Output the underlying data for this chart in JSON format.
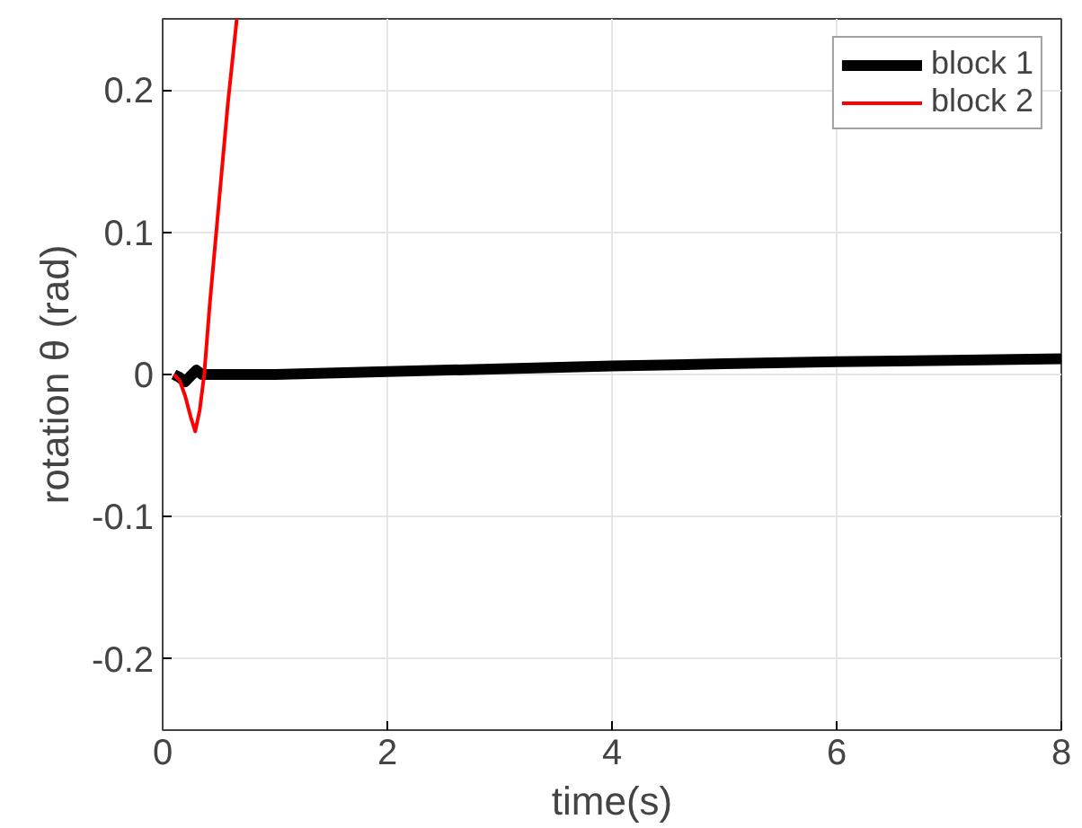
{
  "chart_data": {
    "type": "line",
    "xlabel": "time(s)",
    "ylabel": "rotation θ (rad)",
    "xlim": [
      0,
      8
    ],
    "xticks": [
      0,
      2,
      4,
      6,
      8
    ],
    "ylim": [
      -0.25,
      0.25
    ],
    "yticks": [
      -0.2,
      -0.1,
      0,
      0.1,
      0.2
    ],
    "grid": true,
    "legend": "top right",
    "series": [
      {
        "name": "block 1",
        "color": "#000000",
        "x": [
          0.1,
          0.15,
          0.2,
          0.25,
          0.3,
          0.35,
          0.5,
          1,
          2,
          3,
          4,
          5,
          6,
          7,
          8
        ],
        "values": [
          0,
          -0.002,
          -0.005,
          -0.001,
          0.003,
          0,
          0,
          0,
          0.002,
          0.004,
          0.006,
          0.0075,
          0.009,
          0.01,
          0.011
        ]
      },
      {
        "name": "block 2",
        "color": "#ff0000",
        "x": [
          0.1,
          0.15,
          0.2,
          0.25,
          0.29,
          0.33,
          0.37,
          0.42,
          0.5,
          0.58,
          0.66
        ],
        "values": [
          0,
          -0.004,
          -0.015,
          -0.03,
          -0.04,
          -0.025,
          0,
          0.05,
          0.12,
          0.19,
          0.25
        ]
      }
    ]
  }
}
